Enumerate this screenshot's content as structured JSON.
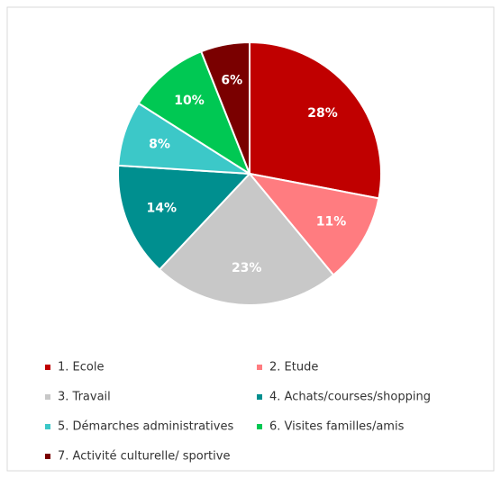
{
  "chart_data": {
    "type": "pie",
    "categories": [
      "1. Ecole",
      "2. Etude",
      "3. Travail",
      "4. Achats/courses/shopping",
      "5. Démarches administratives",
      "6. Visites familles/amis",
      "7. Activité culturelle/ sportive"
    ],
    "values": [
      28,
      11,
      23,
      14,
      8,
      10,
      6
    ],
    "value_labels": [
      "28%",
      "11%",
      "23%",
      "14%",
      "8%",
      "10%",
      "6%"
    ],
    "colors": [
      "#c00000",
      "#ff7c80",
      "#c8c8c8",
      "#008f8f",
      "#3cc8c8",
      "#00c853",
      "#7a0000"
    ],
    "legend": "bottom"
  }
}
